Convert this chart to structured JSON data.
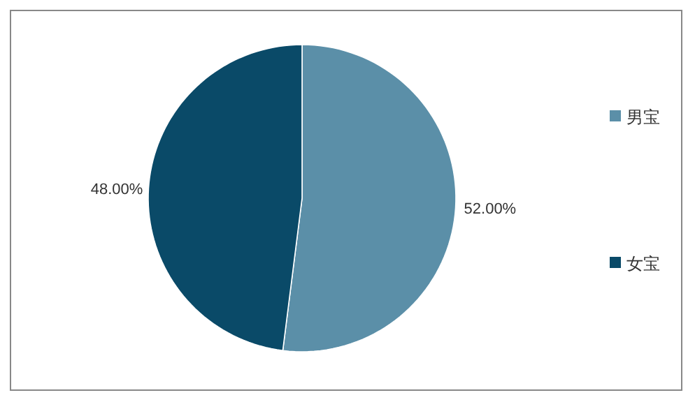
{
  "chart_data": {
    "type": "pie",
    "categories": [
      "男宝",
      "女宝"
    ],
    "values": [
      52,
      48
    ],
    "colors": [
      "#5b8fa8",
      "#0a4a68"
    ],
    "value_labels": [
      "52.00%",
      "48.00%"
    ],
    "legend": "right"
  }
}
